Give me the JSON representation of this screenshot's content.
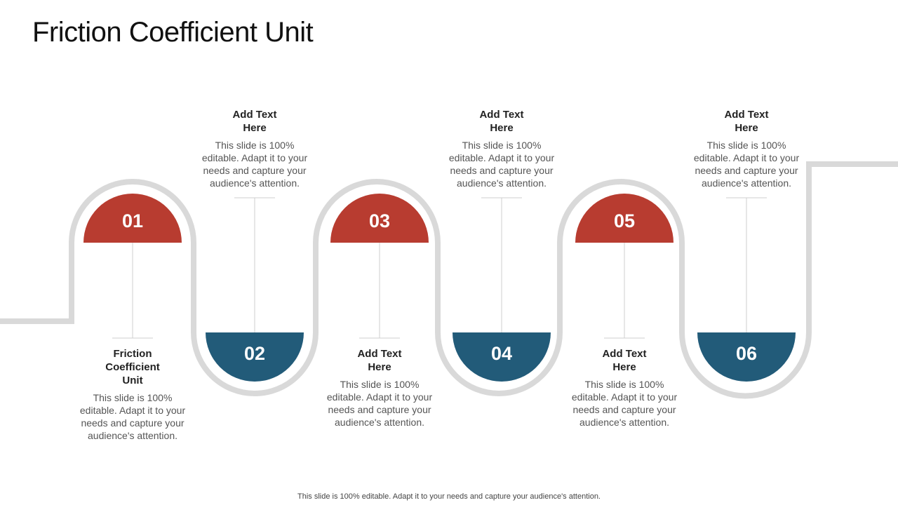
{
  "title": "Friction Coefficient Unit",
  "colors": {
    "top_accent": "#b83c30",
    "bottom_accent": "#225b79",
    "track": "#d9d9d9",
    "connector": "#cfcfcf"
  },
  "steps": [
    {
      "number": "01",
      "position": "top",
      "heading": "Friction Coefficient Unit",
      "body": "This slide is 100% editable. Adapt it to your needs and capture your audience's attention."
    },
    {
      "number": "02",
      "position": "bottom",
      "heading": "Add Text Here",
      "body": "This slide is 100% editable. Adapt it to your needs and capture your audience's attention."
    },
    {
      "number": "03",
      "position": "top",
      "heading": "Add Text Here",
      "body": "This slide is 100% editable. Adapt it to your needs and capture your audience's attention."
    },
    {
      "number": "04",
      "position": "bottom",
      "heading": "Add Text Here",
      "body": "This slide is 100% editable. Adapt it to your needs and capture your audience's attention."
    },
    {
      "number": "05",
      "position": "top",
      "heading": "Add Text Here",
      "body": "This slide is 100% editable. Adapt it to your needs and capture your audience's attention."
    },
    {
      "number": "06",
      "position": "bottom",
      "heading": "Add Text Here",
      "body": "This slide is 100% editable. Adapt it to your needs and capture your audience's attention."
    }
  ],
  "footer": "This slide is 100% editable. Adapt it to your needs and capture your audience's attention."
}
